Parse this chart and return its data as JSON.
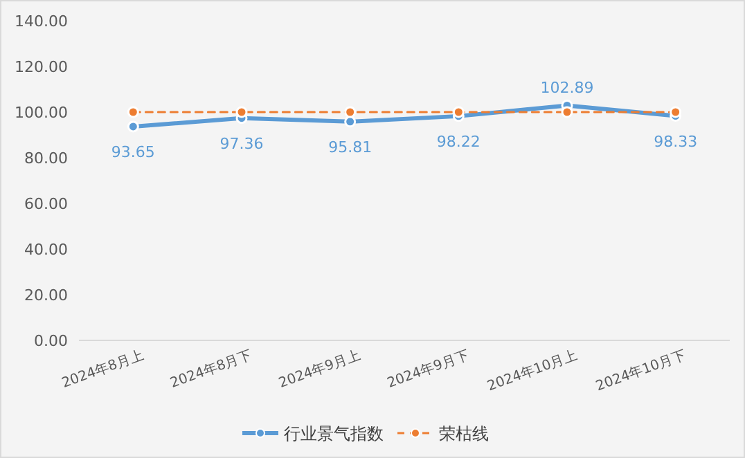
{
  "chart_data": {
    "type": "line",
    "categories": [
      "2024年8月上",
      "2024年8月下",
      "2024年9月上",
      "2024年9月下",
      "2024年10月上",
      "2024年10月下"
    ],
    "series": [
      {
        "name": "行业景气指数",
        "color": "#5b9bd5",
        "values": [
          93.65,
          97.36,
          95.81,
          98.22,
          102.89,
          98.33
        ],
        "value_labels": [
          "93.65",
          "97.36",
          "95.81",
          "98.22",
          "102.89",
          "98.33"
        ],
        "line_style": "solid"
      },
      {
        "name": "荣枯线",
        "color": "#ed7d31",
        "values": [
          100,
          100,
          100,
          100,
          100,
          100
        ],
        "line_style": "dashed"
      }
    ],
    "ylim": [
      0,
      140
    ],
    "yticks": [
      {
        "value": 0,
        "label": "0.00"
      },
      {
        "value": 20,
        "label": "20.00"
      },
      {
        "value": 40,
        "label": "40.00"
      },
      {
        "value": 60,
        "label": "60.00"
      },
      {
        "value": 80,
        "label": "80.00"
      },
      {
        "value": 100,
        "label": "100.00"
      },
      {
        "value": 120,
        "label": "120.00"
      },
      {
        "value": 140,
        "label": "140.00"
      }
    ],
    "grid": false,
    "legend": "bottom",
    "marker": "circle"
  }
}
